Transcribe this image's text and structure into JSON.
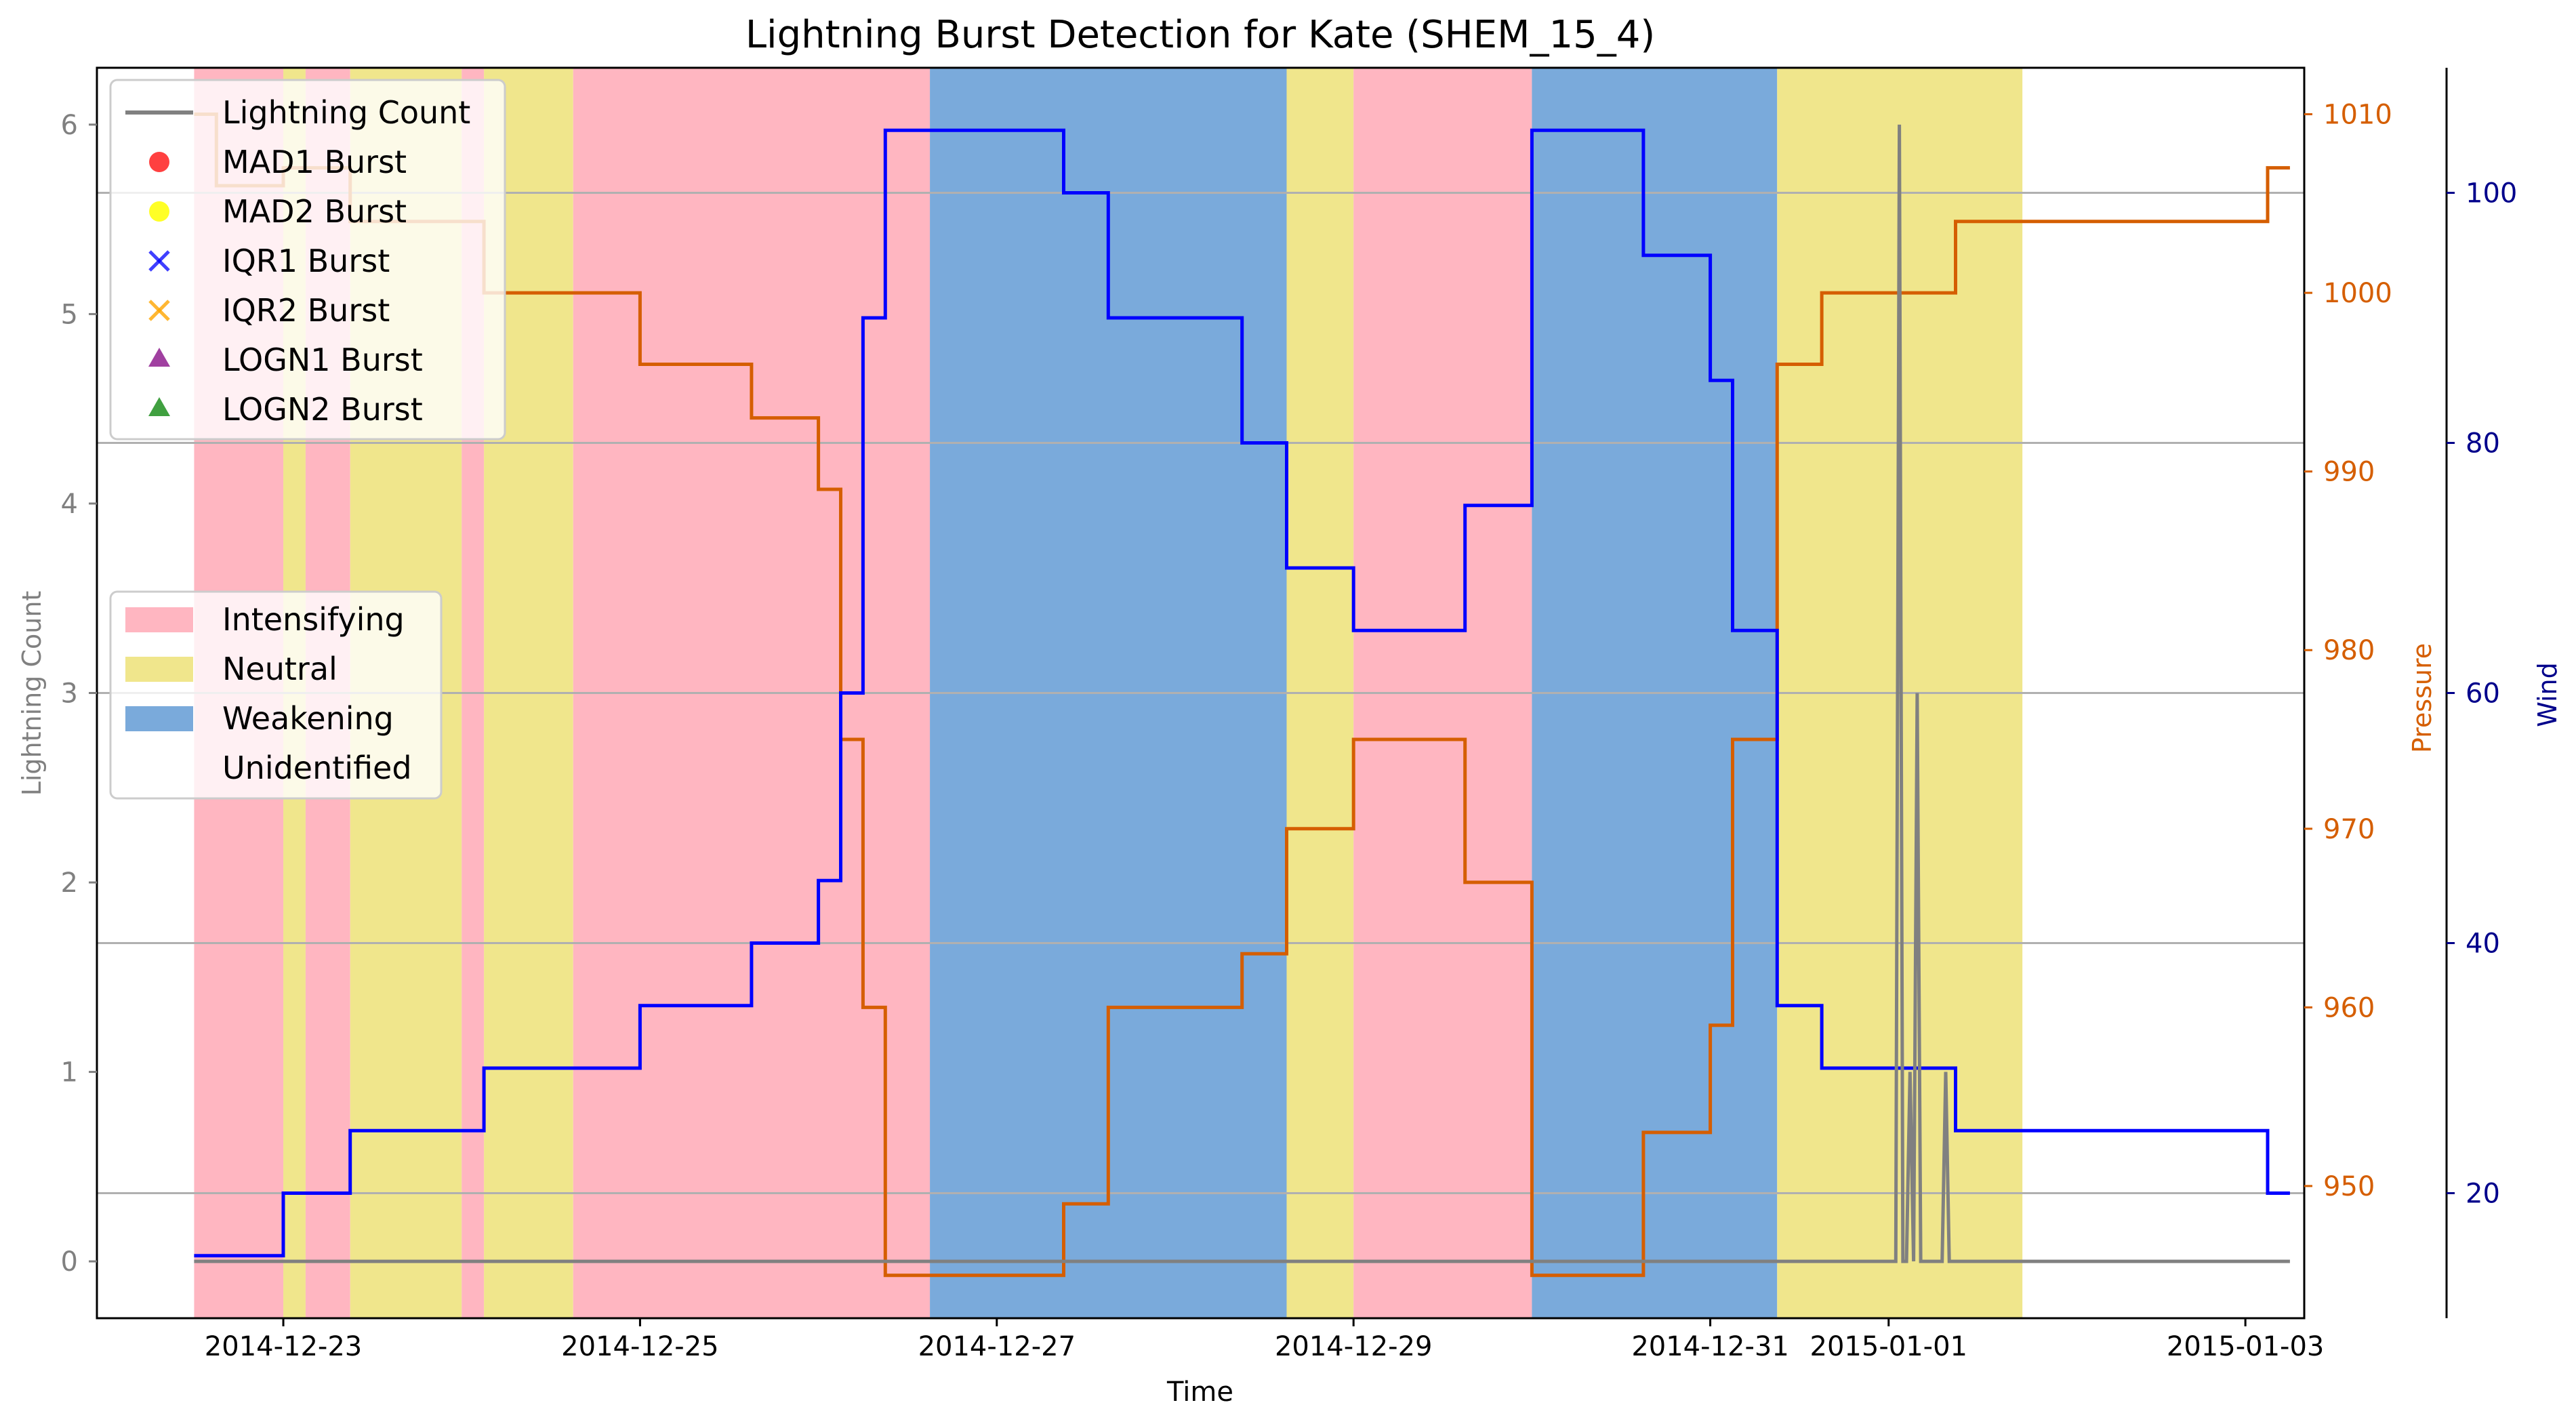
{
  "chart_data": {
    "type": "line",
    "title": "Lightning Burst Detection for Kate (SHEM_15_4)",
    "xlabel": "Time",
    "ylabel_left": "Lightning Count",
    "ylabel_pressure": "Pressure",
    "ylabel_wind": "Wind",
    "x_ticks": [
      {
        "label": "2014-12-23",
        "t": 0.5
      },
      {
        "label": "2014-12-25",
        "t": 2.5
      },
      {
        "label": "2014-12-27",
        "t": 4.5
      },
      {
        "label": "2014-12-29",
        "t": 6.5
      },
      {
        "label": "2014-12-31",
        "t": 8.5
      },
      {
        "label": "2015-01-01",
        "t": 9.5
      },
      {
        "label": "2015-01-03",
        "t": 11.5
      }
    ],
    "xlim": [
      -0.545,
      11.83
    ],
    "ylim_count": [
      -0.3,
      6.3
    ],
    "yticks_count": [
      0,
      1,
      2,
      3,
      4,
      5,
      6
    ],
    "ylim_pressure": [
      942.6,
      1012.6
    ],
    "yticks_pressure": [
      950,
      960,
      970,
      980,
      990,
      1000,
      1010
    ],
    "ylim_wind": [
      10,
      110
    ],
    "yticks_wind": [
      20,
      40,
      60,
      80,
      100
    ],
    "wind_gridlines": [
      20,
      40,
      60,
      80,
      100
    ],
    "colors": {
      "lightning": "#808080",
      "pressure": "#d55e00",
      "wind": "#0000ff",
      "wind_axis": "#00008b",
      "intensifying": "#ffb6c1",
      "neutral": "#f0e68c",
      "weakening": "#7aaadb",
      "grid": "#b0b0b0",
      "left_axis_text": "#808080"
    },
    "phases": [
      {
        "start": 0.0,
        "end": 0.5,
        "phase": "Intensifying"
      },
      {
        "start": 0.5,
        "end": 0.625,
        "phase": "Neutral"
      },
      {
        "start": 0.625,
        "end": 0.875,
        "phase": "Intensifying"
      },
      {
        "start": 0.875,
        "end": 1.5,
        "phase": "Neutral"
      },
      {
        "start": 1.5,
        "end": 1.625,
        "phase": "Intensifying"
      },
      {
        "start": 1.625,
        "end": 2.125,
        "phase": "Neutral"
      },
      {
        "start": 2.125,
        "end": 4.125,
        "phase": "Intensifying"
      },
      {
        "start": 4.125,
        "end": 6.125,
        "phase": "Weakening"
      },
      {
        "start": 6.125,
        "end": 6.5,
        "phase": "Neutral"
      },
      {
        "start": 6.5,
        "end": 7.5,
        "phase": "Intensifying"
      },
      {
        "start": 7.5,
        "end": 8.875,
        "phase": "Weakening"
      },
      {
        "start": 8.875,
        "end": 10.25,
        "phase": "Neutral"
      }
    ],
    "series": [
      {
        "name": "Pressure",
        "axis": "pressure",
        "x": [
          0.0,
          0.125,
          0.125,
          0.5,
          0.5,
          0.625,
          0.625,
          0.875,
          0.875,
          1.0,
          1.0,
          1.625,
          1.625,
          2.5,
          2.5,
          3.125,
          3.125,
          3.5,
          3.5,
          3.625,
          3.625,
          3.75,
          3.75,
          3.875,
          3.875,
          4.125,
          4.125,
          4.25,
          4.25,
          4.5,
          4.5,
          4.875,
          4.875,
          5.125,
          5.125,
          5.875,
          5.875,
          6.125,
          6.125,
          6.5,
          6.5,
          7.125,
          7.125,
          7.5,
          7.5,
          8.125,
          8.125,
          8.5,
          8.5,
          8.625,
          8.625,
          8.875,
          8.875,
          9.125,
          9.125,
          9.875,
          9.875,
          11.625,
          11.625,
          11.75
        ],
        "values": [
          1010,
          1010,
          1006,
          1006,
          1007,
          1007,
          1007,
          1007,
          1004,
          1004,
          1004,
          1004,
          1000,
          1000,
          996,
          996,
          993,
          993,
          989,
          989,
          975,
          975,
          960,
          960,
          945,
          945,
          945,
          945,
          945,
          945,
          945,
          945,
          949,
          949,
          960,
          960,
          963,
          963,
          970,
          970,
          975,
          975,
          967,
          967,
          945,
          945,
          953,
          953,
          959,
          959,
          975,
          975,
          996,
          996,
          1000,
          1000,
          1004,
          1004,
          1007,
          1007
        ]
      },
      {
        "name": "Wind",
        "axis": "wind",
        "x": [
          0.0,
          0.5,
          0.5,
          0.875,
          0.875,
          1.625,
          1.625,
          2.5,
          2.5,
          3.125,
          3.125,
          3.5,
          3.5,
          3.625,
          3.625,
          3.75,
          3.75,
          3.875,
          3.875,
          4.125,
          4.125,
          4.875,
          4.875,
          5.125,
          5.125,
          5.875,
          5.875,
          6.125,
          6.125,
          6.5,
          6.5,
          7.125,
          7.125,
          7.5,
          7.5,
          8.125,
          8.125,
          8.5,
          8.5,
          8.625,
          8.625,
          8.875,
          8.875,
          9.125,
          9.125,
          9.875,
          9.875,
          11.625,
          11.625,
          11.75
        ],
        "values": [
          15,
          15,
          20,
          20,
          25,
          25,
          30,
          30,
          35,
          35,
          40,
          40,
          45,
          45,
          60,
          60,
          90,
          90,
          105,
          105,
          105,
          105,
          100,
          100,
          90,
          90,
          80,
          80,
          70,
          70,
          65,
          65,
          75,
          75,
          105,
          105,
          95,
          95,
          85,
          85,
          65,
          65,
          35,
          35,
          30,
          30,
          25,
          25,
          20,
          20
        ]
      },
      {
        "name": "Lightning Count",
        "axis": "count",
        "x": [
          0.0,
          9.5,
          9.54,
          9.56,
          9.58,
          9.6,
          9.62,
          9.64,
          9.66,
          9.68,
          9.7,
          9.72,
          9.74,
          9.76,
          9.78,
          9.8,
          9.82,
          9.84,
          9.86,
          9.88,
          9.9,
          9.92,
          9.94,
          11.75
        ],
        "values": [
          0,
          0,
          0,
          6,
          0,
          0,
          1,
          0,
          3,
          0,
          0,
          0,
          0,
          0,
          0,
          0,
          1,
          0,
          0,
          0,
          0,
          0,
          0,
          0
        ]
      }
    ],
    "legend_series": [
      "Lightning Count",
      "MAD1 Burst",
      "MAD2 Burst",
      "IQR1 Burst",
      "IQR2 Burst",
      "LOGN1 Burst",
      "LOGN2 Burst"
    ],
    "legend_phases": [
      "Intensifying",
      "Neutral",
      "Weakening",
      "Unidentified"
    ]
  }
}
